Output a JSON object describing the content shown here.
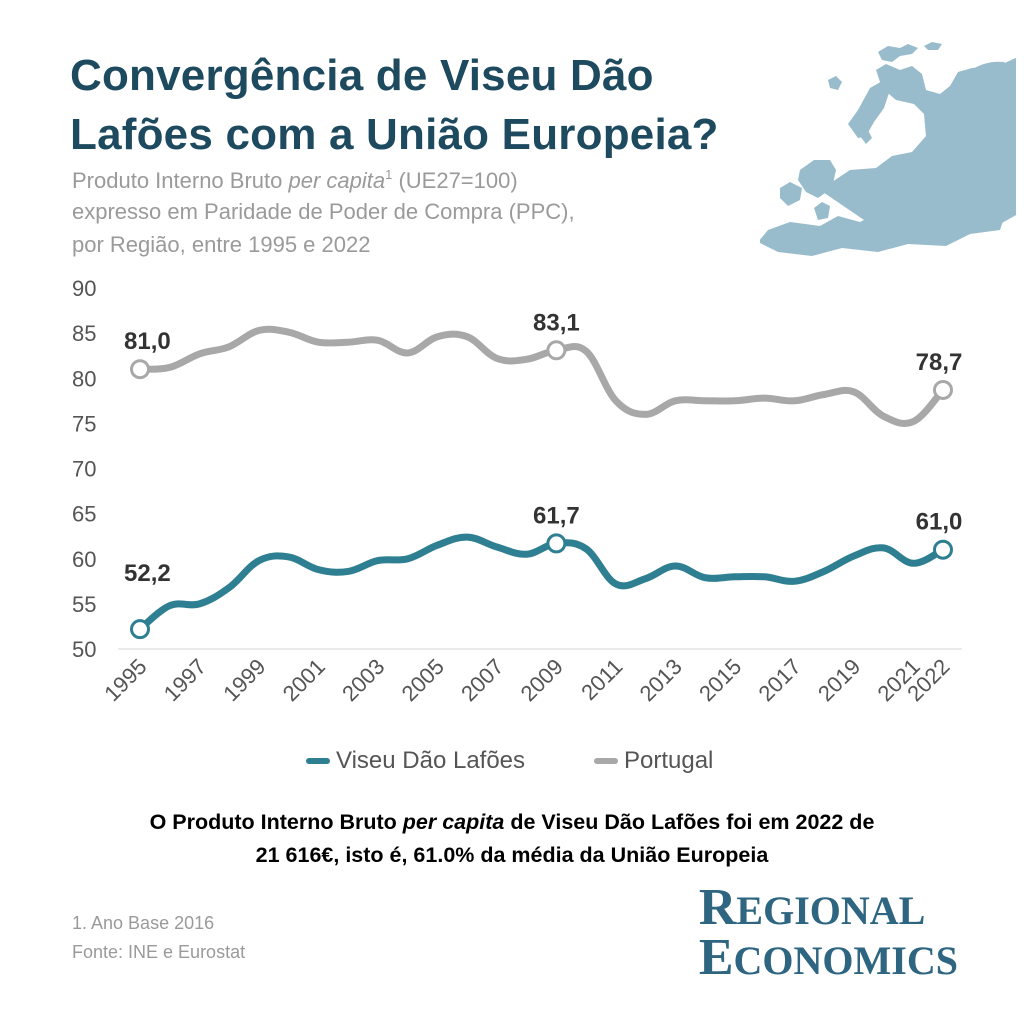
{
  "header": {
    "title_line1": "Convergência de Viseu Dão",
    "title_line2": "Lafões com a União Europeia?",
    "subtitle_line1_a": "Produto Interno Bruto ",
    "subtitle_line1_em": "per capita",
    "subtitle_line1_sup": "1",
    "subtitle_line1_b": " (UE27=100)",
    "subtitle_line2": "expresso em Paridade de Poder de Compra (PPC),",
    "subtitle_line3": "por Região, entre 1995 e 2022"
  },
  "chart_data": {
    "type": "line",
    "title": "Convergência de Viseu Dão Lafões com a União Europeia?",
    "xlabel": "",
    "ylabel": "",
    "ylim": [
      50,
      90
    ],
    "yticks": [
      "50",
      "55",
      "60",
      "65",
      "70",
      "75",
      "80",
      "85",
      "90"
    ],
    "xticks": [
      "1995",
      "1997",
      "1999",
      "2001",
      "2003",
      "2005",
      "2007",
      "2009",
      "2011",
      "2013",
      "2015",
      "2017",
      "2019",
      "2021",
      "2022"
    ],
    "x": [
      1995,
      1996,
      1997,
      1998,
      1999,
      2000,
      2001,
      2002,
      2003,
      2004,
      2005,
      2006,
      2007,
      2008,
      2009,
      2010,
      2011,
      2012,
      2013,
      2014,
      2015,
      2016,
      2017,
      2018,
      2019,
      2020,
      2021,
      2022
    ],
    "series": [
      {
        "name": "Viseu Dão Lafões",
        "color": "#2f7f92",
        "values": [
          52.2,
          54.8,
          55.0,
          56.8,
          59.8,
          60.2,
          58.8,
          58.6,
          59.8,
          60.0,
          61.5,
          62.4,
          61.3,
          60.5,
          61.7,
          61.1,
          57.2,
          57.8,
          59.2,
          57.9,
          58.0,
          58.0,
          57.5,
          58.6,
          60.3,
          61.2,
          59.5,
          61.0
        ],
        "labels": [
          {
            "year": 1995,
            "text": "52,2"
          },
          {
            "year": 2009,
            "text": "61,7"
          },
          {
            "year": 2022,
            "text": "61,0"
          }
        ]
      },
      {
        "name": "Portugal",
        "color": "#a8a8a8",
        "values": [
          81.0,
          81.2,
          82.7,
          83.5,
          85.3,
          85.1,
          84.0,
          84.0,
          84.2,
          82.8,
          84.6,
          84.6,
          82.2,
          82.1,
          83.1,
          83.0,
          77.5,
          76.0,
          77.5,
          77.5,
          77.5,
          77.8,
          77.5,
          78.2,
          78.5,
          75.8,
          75.2,
          78.7
        ],
        "labels": [
          {
            "year": 1995,
            "text": "81,0"
          },
          {
            "year": 2009,
            "text": "83,1"
          },
          {
            "year": 2022,
            "text": "78,7"
          }
        ]
      }
    ],
    "grid": false,
    "legend": "bottom-center"
  },
  "legend": {
    "series1": "Viseu Dão Lafões",
    "series2": "Portugal",
    "color1": "#2f7f92",
    "color2": "#a8a8a8"
  },
  "highlight": {
    "line1_a": "O Produto Interno Bruto ",
    "line1_em": "per capita",
    "line1_b": " de Viseu Dão Lafões foi em 2022 de",
    "line2": "21 616€, isto é, 61.0% da média da União Europeia"
  },
  "footer": {
    "note": "1. Ano Base 2016",
    "source": "Fonte: INE e Eurostat"
  },
  "brand": {
    "word1_initial": "R",
    "word1_rest": "EGIONAL",
    "word2_initial": "E",
    "word2_rest": "CONOMICS",
    "color": "#2e6580"
  },
  "map": {
    "icon": "europe-map-icon",
    "color": "#98bccb"
  }
}
